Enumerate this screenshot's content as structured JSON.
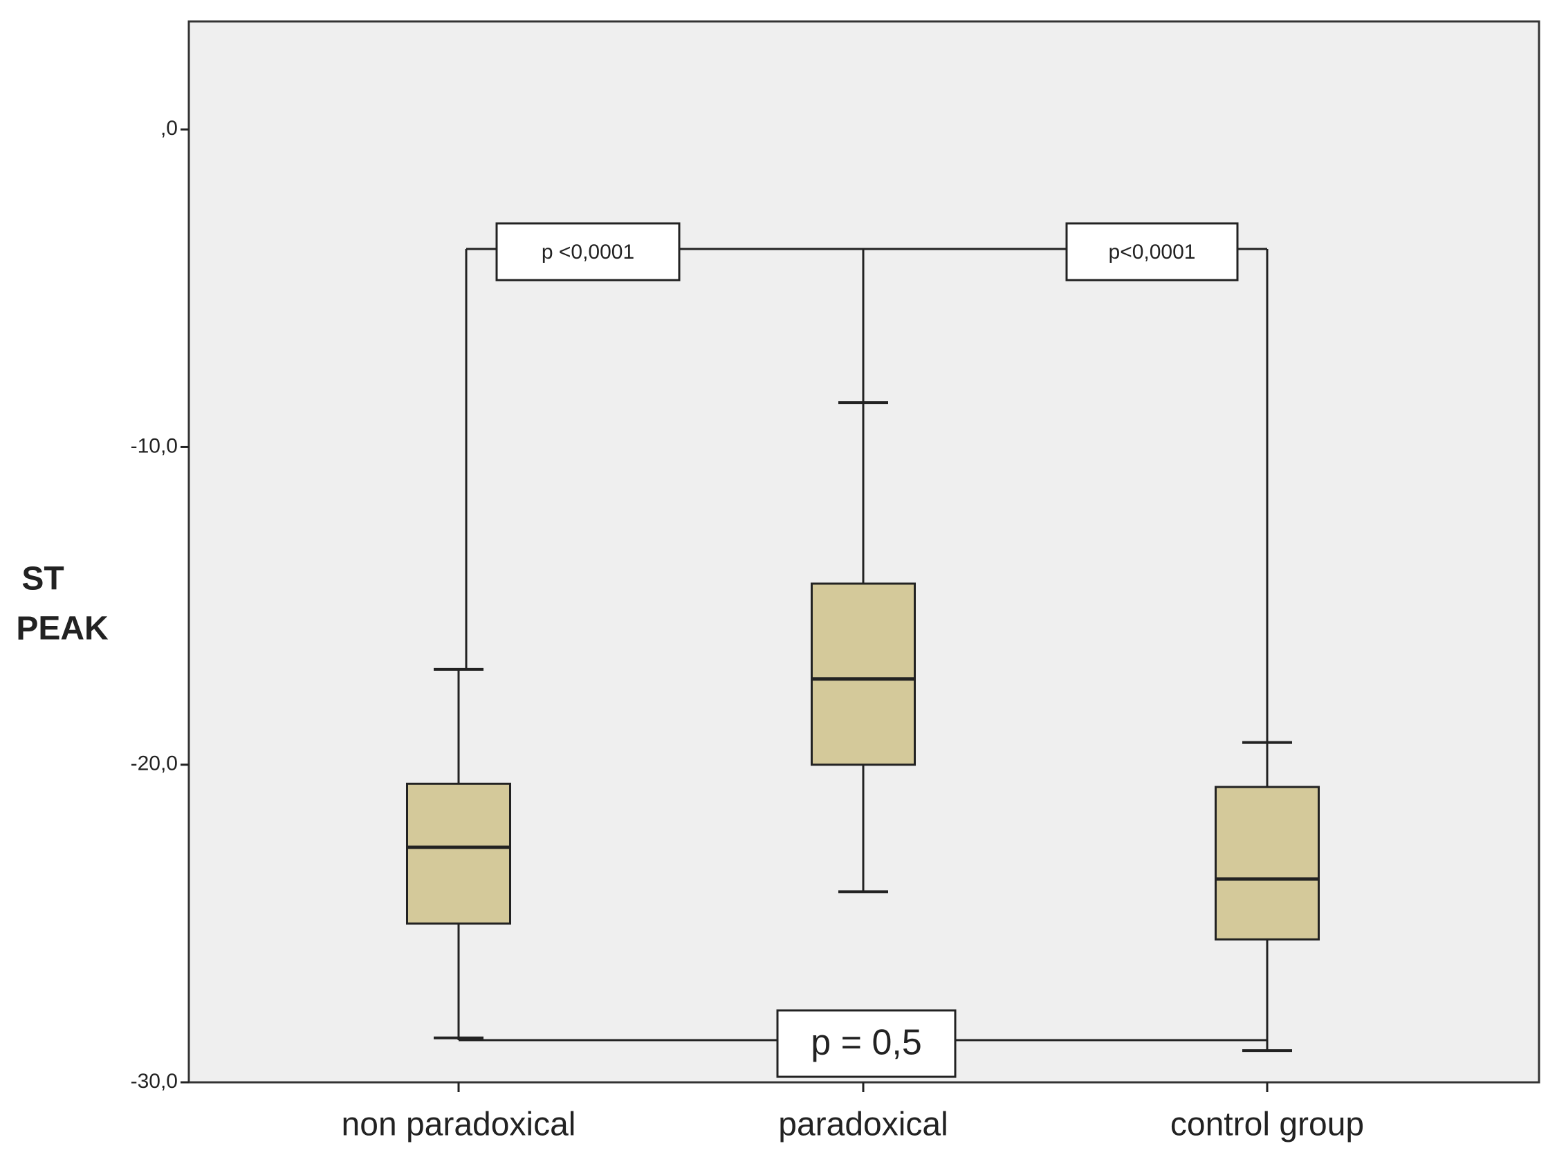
{
  "chart_data": {
    "type": "box",
    "y_label": [
      "ST",
      "PEAK"
    ],
    "categories": [
      "non paradoxical",
      "paradoxical",
      "control group"
    ],
    "boxes": [
      {
        "low": -28.6,
        "q1": -25.0,
        "median": -22.6,
        "q3": -20.6,
        "high": -17.0
      },
      {
        "low": -24.0,
        "q1": -20.0,
        "median": -17.3,
        "q3": -14.3,
        "high": -8.6
      },
      {
        "low": -29.0,
        "q1": -25.5,
        "median": -23.6,
        "q3": -20.7,
        "high": -19.3
      }
    ],
    "color": "#d4c99a",
    "ylim": [
      -30,
      3.4
    ],
    "yticks": [
      {
        "value": 0,
        "label": ",0"
      },
      {
        "value": -10,
        "label": "-10,0"
      },
      {
        "value": -20,
        "label": "-20,0"
      },
      {
        "value": -30,
        "label": "-30,0"
      }
    ],
    "annotations": [
      "p <0,0001",
      "p<0,0001",
      "p = 0,5"
    ]
  }
}
